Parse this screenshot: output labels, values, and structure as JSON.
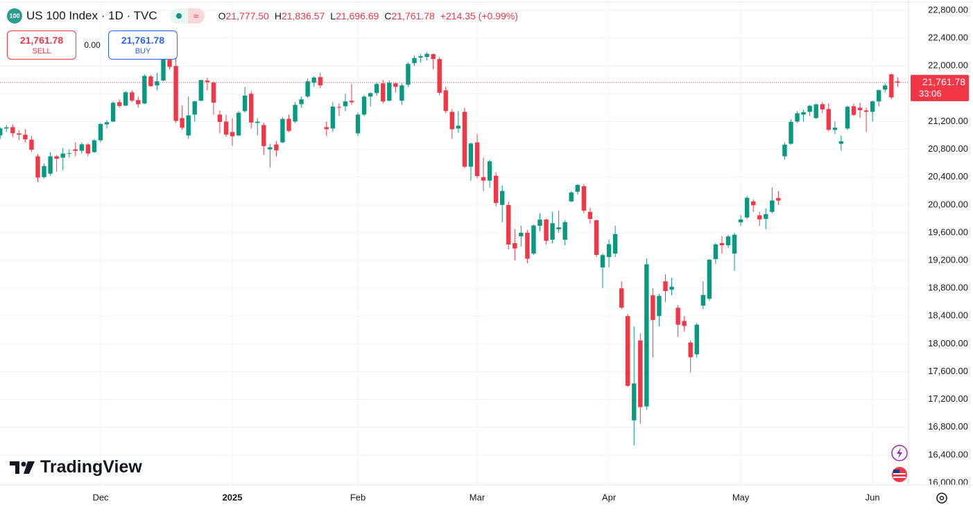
{
  "header": {
    "badge": "100",
    "title": "US 100 Index · 1D · TVC",
    "ohlc": [
      {
        "key": "O",
        "text": "21,777.50"
      },
      {
        "key": "H",
        "text": "21,836.57"
      },
      {
        "key": "L",
        "text": "21,696.69"
      },
      {
        "key": "C",
        "text": "21,761.78"
      }
    ],
    "change": "+214.35 (+0.99%)"
  },
  "trade": {
    "sell_price": "21,761.78",
    "sell_label": "SELL",
    "spread": "0.00",
    "buy_price": "21,761.78",
    "buy_label": "BUY"
  },
  "logo": "TradingView",
  "chart_data": {
    "type": "candlestick",
    "up_color": "#089981",
    "down_color": "#f23645",
    "grid": true,
    "open": [
      21000,
      21100,
      21120,
      21030,
      21010,
      20940,
      20700,
      20400,
      20450,
      20700,
      20680,
      20740,
      20800,
      20780,
      20870,
      20760,
      20930,
      21160,
      21200,
      21480,
      21430,
      21620,
      21510,
      21460,
      21850,
      21720,
      21790,
      22090,
      22000,
      21250,
      21000,
      21300,
      21500,
      21790,
      21760,
      21300,
      21200,
      21050,
      21000,
      21350,
      21600,
      21180,
      21150,
      20800,
      20870,
      20900,
      21240,
      21200,
      21450,
      21560,
      21760,
      21840,
      21120,
      21100,
      21410,
      21420,
      21500,
      21030,
      21300,
      21560,
      21610,
      21750,
      21500,
      21750,
      21500,
      21730,
      22040,
      22120,
      22130,
      22170,
      22100,
      21650,
      21340,
      21100,
      21340,
      20550,
      20900,
      20400,
      20350,
      20420,
      20000,
      20000,
      19450,
      19550,
      19600,
      19300,
      19700,
      19790,
      19500,
      19650,
      19500,
      20050,
      20190,
      20270,
      19900,
      19780,
      19100,
      19250,
      19300,
      18800,
      18400,
      16900,
      18050,
      17100,
      18700,
      18400,
      18900,
      18780,
      18520,
      18330,
      18020,
      17850,
      18550,
      18650,
      19220,
      19450,
      19420,
      19300,
      19750,
      19820,
      20050,
      19850,
      19800,
      19900,
      20100,
      20700,
      20880,
      21200,
      21300,
      21340,
      21250,
      21450,
      21380,
      21080,
      20880,
      21100,
      21420,
      21400,
      21360,
      21340,
      21490,
      21660,
      21880,
      21777.5
    ],
    "high": [
      21120,
      21150,
      21160,
      21080,
      21090,
      20990,
      20730,
      20600,
      20760,
      20720,
      20820,
      20800,
      20900,
      20900,
      20890,
      20950,
      21180,
      21220,
      21490,
      21520,
      21640,
      21650,
      21560,
      21880,
      21870,
      21900,
      22130,
      22110,
      22110,
      21430,
      21560,
      21500,
      21800,
      21830,
      21780,
      21360,
      21300,
      21250,
      21350,
      21700,
      21640,
      21250,
      21180,
      20880,
      20920,
      21260,
      21300,
      21480,
      21560,
      21820,
      21850,
      21900,
      21200,
      21480,
      21460,
      21600,
      21740,
      21330,
      21580,
      21620,
      21760,
      21800,
      21790,
      21760,
      21750,
      22050,
      22150,
      22170,
      22200,
      22180,
      22130,
      21700,
      21380,
      21350,
      21400,
      20900,
      21020,
      20680,
      20650,
      20470,
      20280,
      20050,
      19650,
      19700,
      19640,
      19720,
      19880,
      19800,
      19900,
      19920,
      19780,
      20200,
      20300,
      20300,
      19960,
      19790,
      19300,
      19500,
      19700,
      18900,
      18430,
      18250,
      18150,
      19230,
      18800,
      18720,
      19000,
      18950,
      18560,
      18400,
      18050,
      18300,
      18900,
      19220,
      19450,
      19550,
      19570,
      19600,
      19850,
      20130,
      20080,
      19900,
      19950,
      20250,
      20200,
      20900,
      21230,
      21350,
      21370,
      21440,
      21460,
      21480,
      21460,
      21200,
      21000,
      21430,
      21460,
      21470,
      21400,
      21500,
      21660,
      21750,
      21890,
      21836.57
    ],
    "low": [
      20950,
      21050,
      20980,
      20930,
      20900,
      20760,
      20330,
      20380,
      20420,
      20480,
      20500,
      20680,
      20700,
      20740,
      20700,
      20750,
      20900,
      21100,
      21190,
      21400,
      21420,
      21480,
      21400,
      21450,
      21700,
      21650,
      21780,
      21950,
      21180,
      21080,
      20950,
      21200,
      21490,
      21650,
      21300,
      21030,
      20980,
      20850,
      20990,
      21330,
      21100,
      21000,
      20720,
      20540,
      20700,
      20890,
      21050,
      21180,
      21400,
      21540,
      21700,
      21680,
      20990,
      21050,
      21280,
      21350,
      21440,
      20990,
      21280,
      21420,
      21570,
      21460,
      21490,
      21620,
      21440,
      21700,
      22000,
      22050,
      22080,
      21950,
      21580,
      21320,
      20950,
      21040,
      20530,
      20350,
      20380,
      20200,
      20250,
      19980,
      19750,
      19360,
      19200,
      19400,
      19160,
      19280,
      19620,
      19430,
      19450,
      19600,
      19420,
      20040,
      20150,
      19880,
      19730,
      19250,
      18800,
      19100,
      19250,
      18500,
      17380,
      16540,
      16850,
      17050,
      17800,
      18250,
      18600,
      18700,
      18100,
      18180,
      17590,
      17800,
      18500,
      18620,
      19150,
      19300,
      19380,
      19050,
      19700,
      19800,
      19900,
      19700,
      19650,
      19880,
      20000,
      20650,
      20870,
      21180,
      21200,
      21280,
      21240,
      21320,
      21060,
      21020,
      20780,
      21080,
      21280,
      21250,
      21050,
      21200,
      21420,
      21620,
      21520,
      21696.69
    ],
    "close": [
      21102,
      21117,
      21032,
      21011,
      20945,
      20793,
      20394,
      20560,
      20700,
      20665,
      20740,
      20744,
      20778,
      20873,
      20740,
      20930,
      21164,
      21191,
      21470,
      21425,
      21622,
      21502,
      21449,
      21856,
      21709,
      21780,
      22097,
      21987,
      21209,
      21111,
      21289,
      21491,
      21798,
      21768,
      21472,
      21194,
      21012,
      20988,
      21327,
      21574,
      21186,
      21198,
      20848,
      20829,
      20785,
      21238,
      21066,
      21440,
      21520,
      21780,
      21833,
      21720,
      21090,
      21416,
      21400,
      21490,
      21478,
      21300,
      21560,
      21610,
      21740,
      21490,
      21760,
      21700,
      21720,
      22030,
      22115,
      22140,
      22175,
      22100,
      21614,
      21352,
      21090,
      21140,
      20550,
      20884,
      20415,
      20350,
      20628,
      20027,
      20201,
      19430,
      19373,
      19600,
      19225,
      19704,
      19789,
      19483,
      19737,
      19677,
      19753,
      20180,
      20287,
      19917,
      19799,
      19281,
      19278,
      19435,
      19580,
      18521,
      17397,
      17430,
      17090,
      19145,
      18343,
      18690,
      18761,
      18822,
      18276,
      18258,
      17808,
      18276,
      18704,
      19212,
      19432,
      19419,
      19546,
      19571,
      19791,
      20103,
      19995,
      19792,
      19867,
      20064,
      20062,
      20868,
      21196,
      21319,
      21335,
      21427,
      21447,
      21375,
      21081,
      21112,
      20915,
      21413,
      21296,
      21363,
      21340,
      21491,
      21652,
      21719,
      21547.43,
      21761.78
    ],
    "ylim": [
      16000,
      22800
    ],
    "yticks": [
      {
        "value": 16000,
        "label": "16,000.00"
      },
      {
        "value": 16400,
        "label": "16,400.00"
      },
      {
        "value": 16800,
        "label": "16,800.00"
      },
      {
        "value": 17200,
        "label": "17,200.00"
      },
      {
        "value": 17600,
        "label": "17,600.00"
      },
      {
        "value": 18000,
        "label": "18,000.00"
      },
      {
        "value": 18400,
        "label": "18,400.00"
      },
      {
        "value": 18800,
        "label": "18,800.00"
      },
      {
        "value": 19200,
        "label": "19,200.00"
      },
      {
        "value": 19600,
        "label": "19,600.00"
      },
      {
        "value": 20000,
        "label": "20,000.00"
      },
      {
        "value": 20400,
        "label": "20,400.00"
      },
      {
        "value": 20800,
        "label": "20,800.00"
      },
      {
        "value": 21200,
        "label": "21,200.00"
      },
      {
        "value": 21600,
        "label": "21,600.00"
      },
      {
        "value": 22000,
        "label": "22,000.00"
      },
      {
        "value": 22400,
        "label": "22,400.00"
      },
      {
        "value": 22800,
        "label": "22,800.00"
      }
    ],
    "xticks": [
      {
        "value": 16,
        "label": "Dec"
      },
      {
        "value": 37,
        "label": "2025"
      },
      {
        "value": 57,
        "label": "Feb"
      },
      {
        "value": 76,
        "label": "Mar"
      },
      {
        "value": 97,
        "label": "Apr"
      },
      {
        "value": 118,
        "label": "May"
      },
      {
        "value": 139,
        "label": "Jun"
      }
    ],
    "last_price": {
      "value": 21761.78,
      "label": "21,761.78",
      "countdown": "33:06"
    }
  }
}
